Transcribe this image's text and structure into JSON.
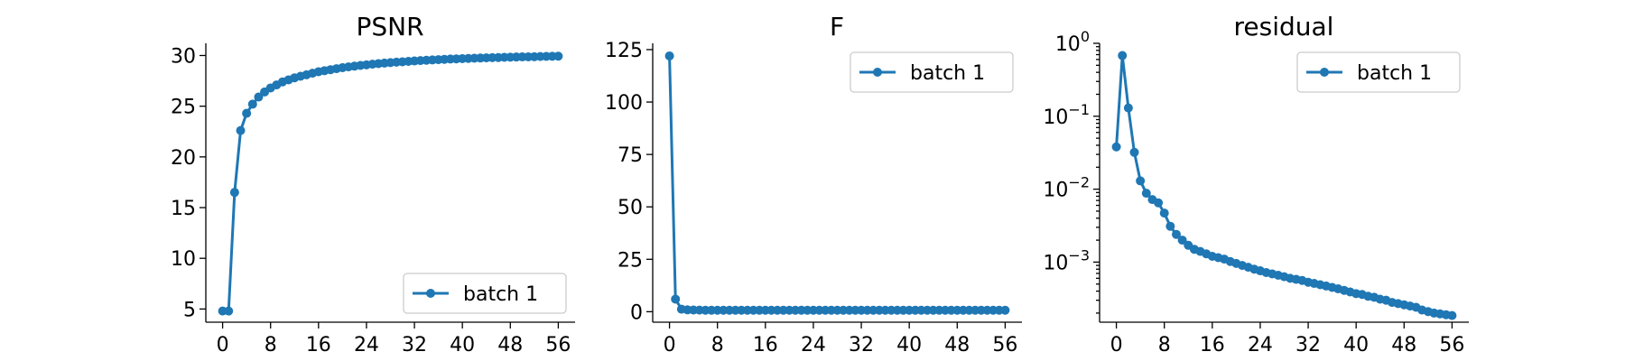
{
  "chart_data": [
    {
      "type": "line",
      "title": "PSNR",
      "xlabel": "",
      "ylabel": "",
      "yscale": "linear",
      "ylim": [
        3.7,
        31.2
      ],
      "yticks": [
        5,
        10,
        15,
        20,
        25,
        30
      ],
      "ytick_labels": [
        "5",
        "10",
        "15",
        "20",
        "25",
        "30"
      ],
      "xlim": [
        -2.8,
        58.8
      ],
      "xticks": [
        0,
        8,
        16,
        24,
        32,
        40,
        48,
        56
      ],
      "xtick_labels": [
        "0",
        "8",
        "16",
        "24",
        "32",
        "40",
        "48",
        "56"
      ],
      "legend_position": "lower-right",
      "grid": false,
      "series": [
        {
          "name": "batch 1",
          "color": "#1f77b4",
          "marker": "circle",
          "x": [
            0,
            1,
            2,
            3,
            4,
            5,
            6,
            7,
            8,
            9,
            10,
            11,
            12,
            13,
            14,
            15,
            16,
            17,
            18,
            19,
            20,
            21,
            22,
            23,
            24,
            25,
            26,
            27,
            28,
            29,
            30,
            31,
            32,
            33,
            34,
            35,
            36,
            37,
            38,
            39,
            40,
            41,
            42,
            43,
            44,
            45,
            46,
            47,
            48,
            49,
            50,
            51,
            52,
            53,
            54,
            55,
            56
          ],
          "y": [
            4.8,
            4.8,
            16.5,
            22.6,
            24.3,
            25.2,
            25.9,
            26.4,
            26.8,
            27.1,
            27.4,
            27.6,
            27.8,
            27.95,
            28.1,
            28.25,
            28.4,
            28.5,
            28.6,
            28.7,
            28.8,
            28.88,
            28.95,
            29.02,
            29.08,
            29.14,
            29.2,
            29.25,
            29.3,
            29.34,
            29.38,
            29.42,
            29.46,
            29.5,
            29.53,
            29.56,
            29.59,
            29.62,
            29.65,
            29.67,
            29.69,
            29.71,
            29.73,
            29.75,
            29.77,
            29.79,
            29.8,
            29.82,
            29.83,
            29.85,
            29.86,
            29.87,
            29.88,
            29.9,
            29.91,
            29.92,
            29.93
          ]
        }
      ]
    },
    {
      "type": "line",
      "title": "F",
      "xlabel": "",
      "ylabel": "",
      "yscale": "linear",
      "ylim": [
        -5,
        128
      ],
      "yticks": [
        0,
        25,
        50,
        75,
        100,
        125
      ],
      "ytick_labels": [
        "0",
        "25",
        "50",
        "75",
        "100",
        "125"
      ],
      "xlim": [
        -2.8,
        58.8
      ],
      "xticks": [
        0,
        8,
        16,
        24,
        32,
        40,
        48,
        56
      ],
      "xtick_labels": [
        "0",
        "8",
        "16",
        "24",
        "32",
        "40",
        "48",
        "56"
      ],
      "legend_position": "upper-right",
      "grid": false,
      "series": [
        {
          "name": "batch 1",
          "color": "#1f77b4",
          "marker": "circle",
          "x": [
            0,
            1,
            2,
            3,
            4,
            5,
            6,
            7,
            8,
            9,
            10,
            11,
            12,
            13,
            14,
            15,
            16,
            17,
            18,
            19,
            20,
            21,
            22,
            23,
            24,
            25,
            26,
            27,
            28,
            29,
            30,
            31,
            32,
            33,
            34,
            35,
            36,
            37,
            38,
            39,
            40,
            41,
            42,
            43,
            44,
            45,
            46,
            47,
            48,
            49,
            50,
            51,
            52,
            53,
            54,
            55,
            56
          ],
          "y": [
            122,
            6,
            1.2,
            0.9,
            0.8,
            0.75,
            0.7,
            0.7,
            0.7,
            0.7,
            0.7,
            0.7,
            0.7,
            0.7,
            0.7,
            0.7,
            0.7,
            0.7,
            0.7,
            0.7,
            0.7,
            0.7,
            0.7,
            0.7,
            0.7,
            0.7,
            0.7,
            0.7,
            0.7,
            0.7,
            0.7,
            0.7,
            0.7,
            0.7,
            0.7,
            0.7,
            0.7,
            0.7,
            0.7,
            0.7,
            0.7,
            0.7,
            0.7,
            0.7,
            0.7,
            0.7,
            0.7,
            0.7,
            0.7,
            0.7,
            0.7,
            0.7,
            0.7,
            0.7,
            0.7,
            0.7,
            0.7
          ]
        }
      ]
    },
    {
      "type": "line",
      "title": "residual",
      "xlabel": "",
      "ylabel": "",
      "yscale": "log",
      "ylim": [
        0.00015,
        1.0
      ],
      "yticks": [
        0.001,
        0.01,
        0.1,
        1
      ],
      "ytick_labels": [
        {
          "base": "10",
          "exp": "−3"
        },
        {
          "base": "10",
          "exp": "−2"
        },
        {
          "base": "10",
          "exp": "−1"
        },
        {
          "base": "10",
          "exp": "0"
        }
      ],
      "xlim": [
        -2.8,
        58.8
      ],
      "xticks": [
        0,
        8,
        16,
        24,
        32,
        40,
        48,
        56
      ],
      "xtick_labels": [
        "0",
        "8",
        "16",
        "24",
        "32",
        "40",
        "48",
        "56"
      ],
      "legend_position": "upper-right",
      "grid": false,
      "series": [
        {
          "name": "batch 1",
          "color": "#1f77b4",
          "marker": "circle",
          "x": [
            0,
            1,
            2,
            3,
            4,
            5,
            6,
            7,
            8,
            9,
            10,
            11,
            12,
            13,
            14,
            15,
            16,
            17,
            18,
            19,
            20,
            21,
            22,
            23,
            24,
            25,
            26,
            27,
            28,
            29,
            30,
            31,
            32,
            33,
            34,
            35,
            36,
            37,
            38,
            39,
            40,
            41,
            42,
            43,
            44,
            45,
            46,
            47,
            48,
            49,
            50,
            51,
            52,
            53,
            54,
            55,
            56
          ],
          "y": [
            0.038,
            0.68,
            0.13,
            0.032,
            0.013,
            0.0088,
            0.0072,
            0.0065,
            0.0047,
            0.0031,
            0.0024,
            0.002,
            0.0017,
            0.0015,
            0.0014,
            0.0013,
            0.0012,
            0.00115,
            0.0011,
            0.00102,
            0.00096,
            0.0009,
            0.00085,
            0.0008,
            0.00076,
            0.00072,
            0.00069,
            0.00066,
            0.00063,
            0.0006,
            0.00058,
            0.00056,
            0.00053,
            0.00051,
            0.00049,
            0.00047,
            0.00045,
            0.00043,
            0.00041,
            0.00039,
            0.00037,
            0.00036,
            0.00034,
            0.00033,
            0.00031,
            0.0003,
            0.00028,
            0.00027,
            0.00026,
            0.00025,
            0.00024,
            0.00022,
            0.00021,
            0.0002,
            0.000195,
            0.00019,
            0.000185
          ]
        }
      ]
    }
  ]
}
